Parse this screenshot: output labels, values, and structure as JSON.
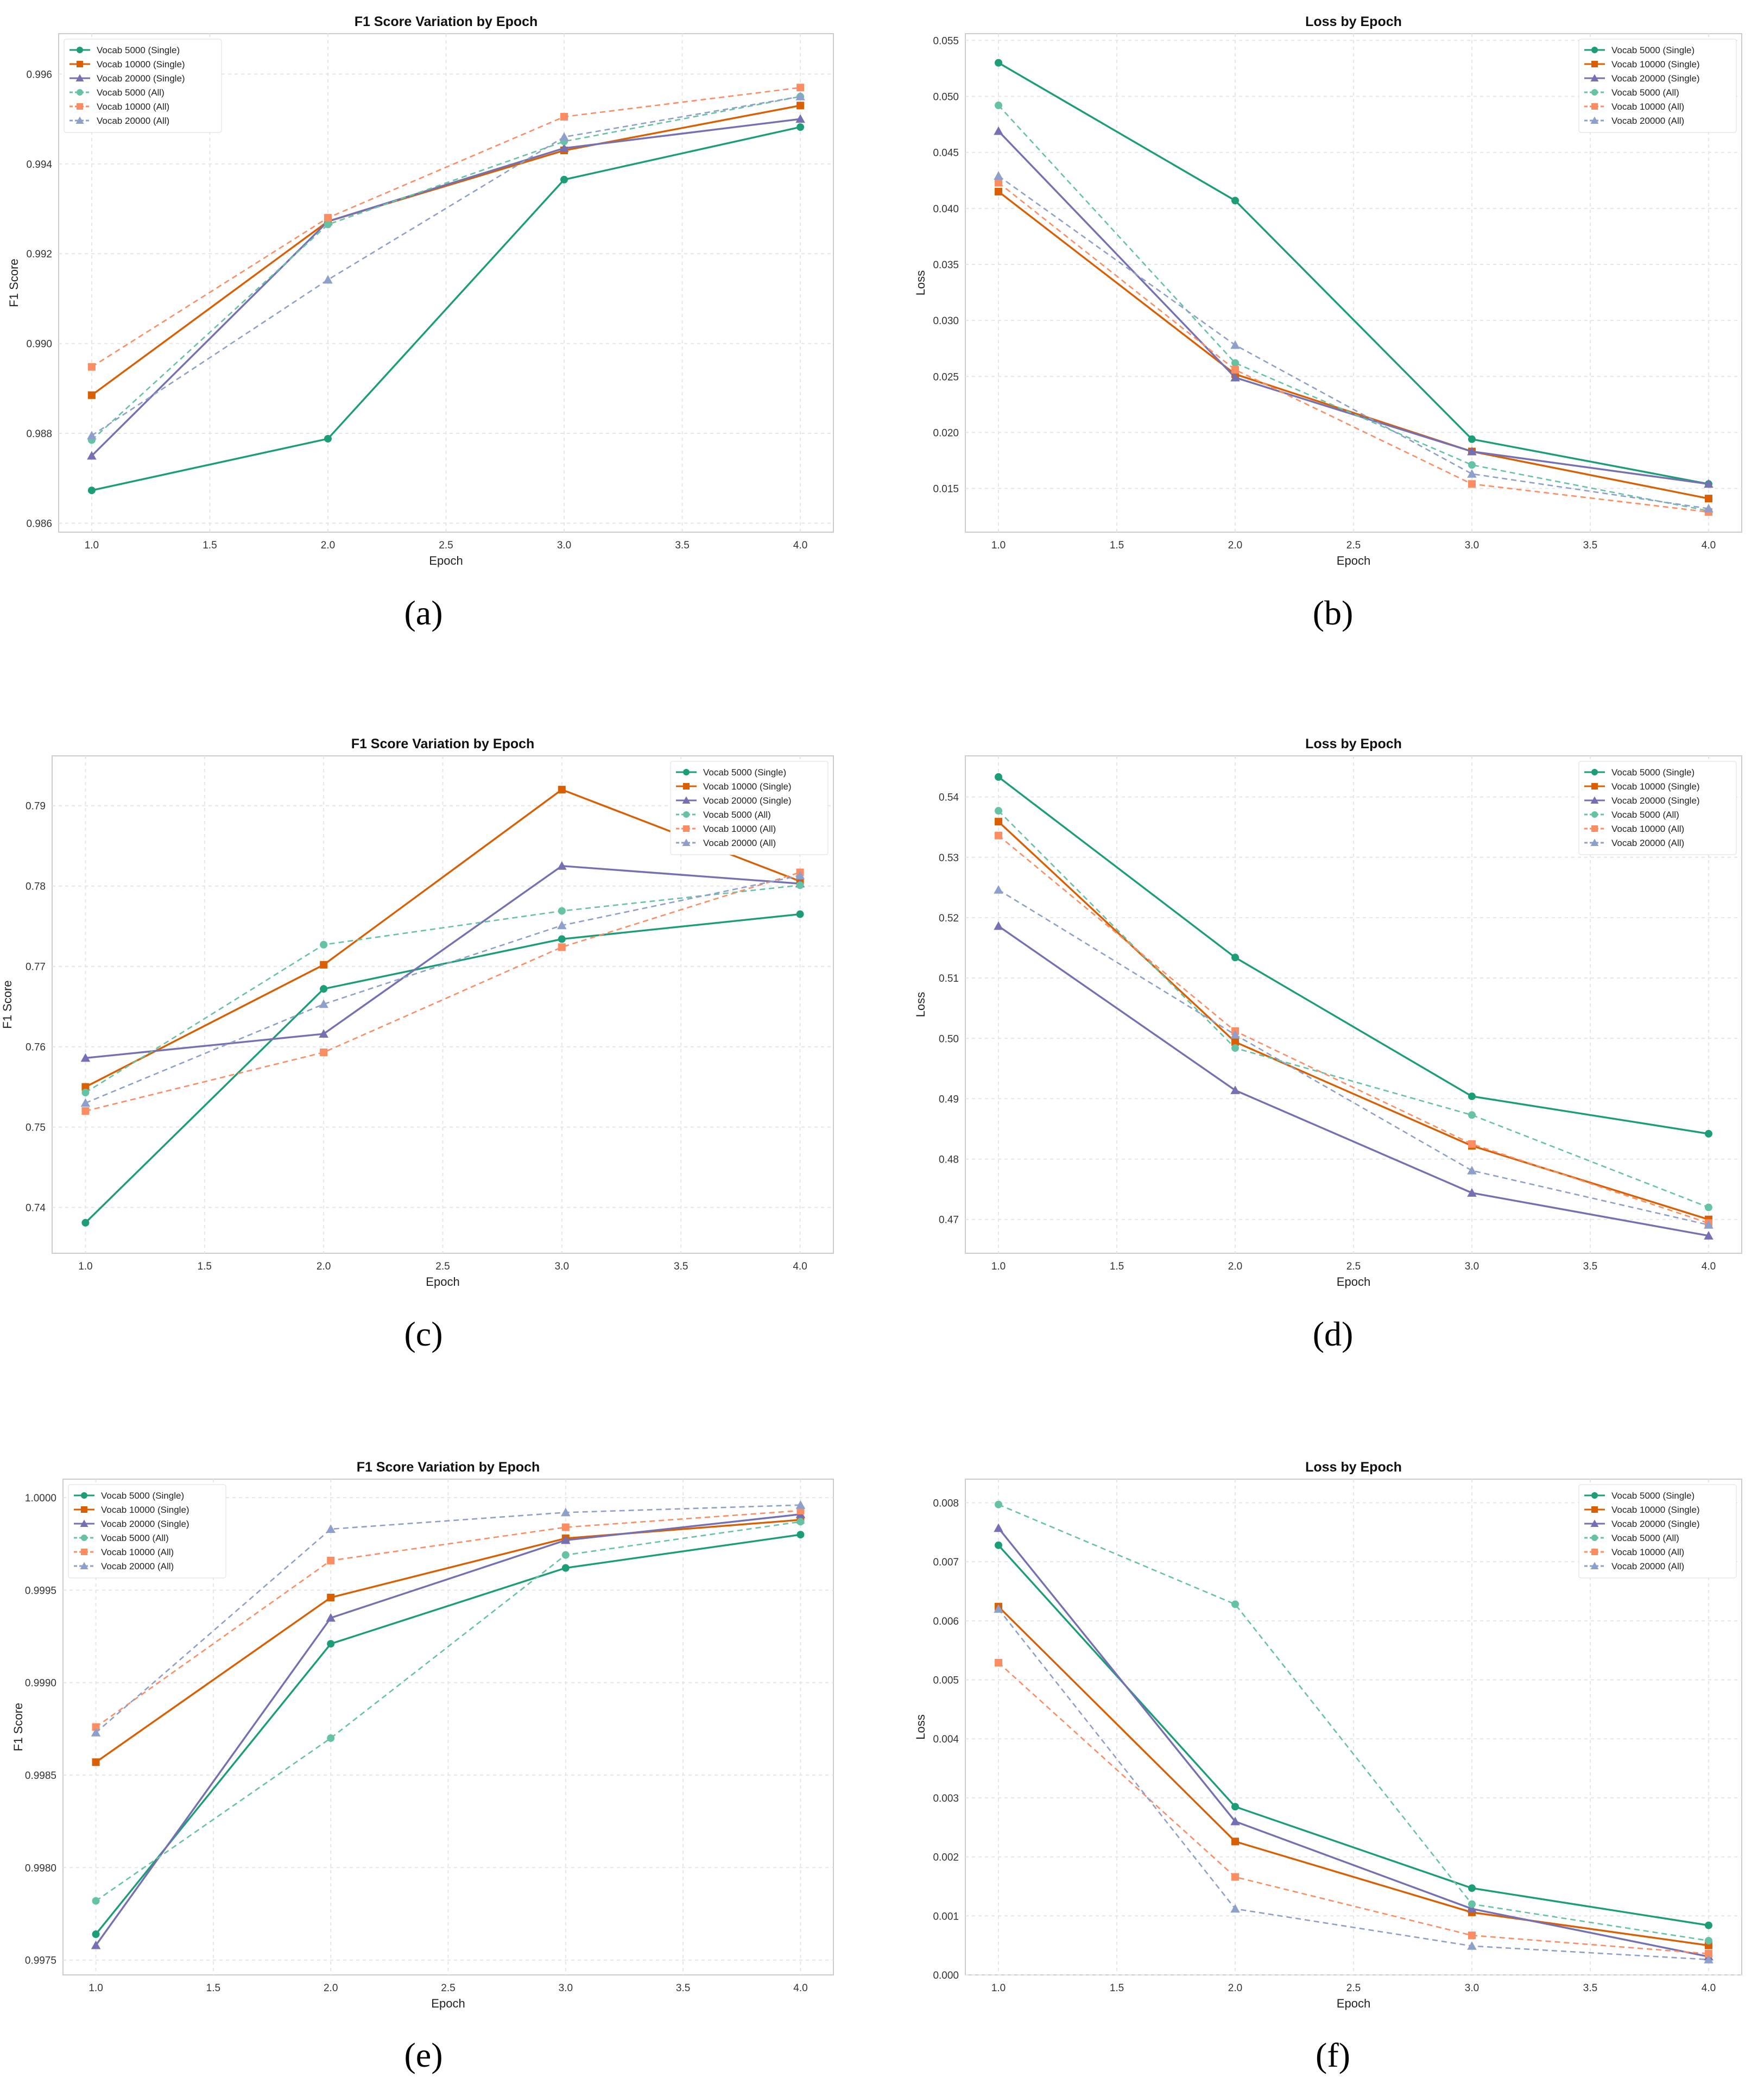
{
  "colors": {
    "green": "#1b9e77",
    "orange": "#d95f02",
    "purple": "#7570b3",
    "light_green": "#66c2a5",
    "light_orange": "#fc8d62",
    "light_purple": "#8da0cb"
  },
  "legend_labels": [
    "Vocab 5000 (Single)",
    "Vocab 10000 (Single)",
    "Vocab 20000 (Single)",
    "Vocab 5000 (All)",
    "Vocab 10000 (All)",
    "Vocab 20000 (All)"
  ],
  "chart_data": [
    {
      "panel": "(a)",
      "type": "line",
      "title": "F1 Score Variation by Epoch",
      "xlabel": "Epoch",
      "ylabel": "F1 Score",
      "x": [
        1.0,
        2.0,
        3.0,
        4.0
      ],
      "xlim": [
        0.86,
        4.14
      ],
      "xticks": [
        1.0,
        1.5,
        2.0,
        2.5,
        3.0,
        3.5,
        4.0
      ],
      "xtick_labels": [
        "1.0",
        "1.5",
        "2.0",
        "2.5",
        "3.0",
        "3.5",
        "4.0"
      ],
      "ylim": [
        0.9858,
        0.9969
      ],
      "yticks": [
        0.986,
        0.988,
        0.99,
        0.992,
        0.994,
        0.996
      ],
      "ytick_labels": [
        "0.986",
        "0.988",
        "0.990",
        "0.992",
        "0.994",
        "0.996"
      ],
      "legend_position": "top-left",
      "grid": true,
      "series": [
        {
          "name": "Vocab 5000 (Single)",
          "values": [
            0.98673,
            0.98788,
            0.99365,
            0.99482
          ]
        },
        {
          "name": "Vocab 10000 (Single)",
          "values": [
            0.98885,
            0.99272,
            0.9943,
            0.9953
          ]
        },
        {
          "name": "Vocab 20000 (Single)",
          "values": [
            0.9875,
            0.99272,
            0.99435,
            0.995
          ]
        },
        {
          "name": "Vocab 5000 (All)",
          "values": [
            0.98785,
            0.99265,
            0.9945,
            0.9955
          ]
        },
        {
          "name": "Vocab 10000 (All)",
          "values": [
            0.98948,
            0.9928,
            0.99505,
            0.9957
          ]
        },
        {
          "name": "Vocab 20000 (All)",
          "values": [
            0.98795,
            0.99142,
            0.9946,
            0.9955
          ]
        }
      ]
    },
    {
      "panel": "(b)",
      "type": "line",
      "title": "Loss by Epoch",
      "xlabel": "Epoch",
      "ylabel": "Loss",
      "x": [
        1.0,
        2.0,
        3.0,
        4.0
      ],
      "xlim": [
        0.86,
        4.14
      ],
      "xticks": [
        1.0,
        1.5,
        2.0,
        2.5,
        3.0,
        3.5,
        4.0
      ],
      "xtick_labels": [
        "1.0",
        "1.5",
        "2.0",
        "2.5",
        "3.0",
        "3.5",
        "4.0"
      ],
      "ylim": [
        0.0111,
        0.0556
      ],
      "yticks": [
        0.015,
        0.02,
        0.025,
        0.03,
        0.035,
        0.04,
        0.045,
        0.05,
        0.055
      ],
      "ytick_labels": [
        "0.015",
        "0.020",
        "0.025",
        "0.030",
        "0.035",
        "0.040",
        "0.045",
        "0.050",
        "0.055"
      ],
      "legend_position": "top-right",
      "grid": true,
      "series": [
        {
          "name": "Vocab 5000 (Single)",
          "values": [
            0.053,
            0.0407,
            0.0194,
            0.0154
          ]
        },
        {
          "name": "Vocab 10000 (Single)",
          "values": [
            0.0415,
            0.0252,
            0.0183,
            0.0141
          ]
        },
        {
          "name": "Vocab 20000 (Single)",
          "values": [
            0.0469,
            0.0249,
            0.0183,
            0.0154
          ]
        },
        {
          "name": "Vocab 5000 (All)",
          "values": [
            0.0492,
            0.0262,
            0.0171,
            0.013
          ]
        },
        {
          "name": "Vocab 10000 (All)",
          "values": [
            0.0423,
            0.0256,
            0.0154,
            0.0129
          ]
        },
        {
          "name": "Vocab 20000 (All)",
          "values": [
            0.0429,
            0.0278,
            0.0163,
            0.0132
          ]
        }
      ]
    },
    {
      "panel": "(c)",
      "type": "line",
      "title": "F1 Score Variation by Epoch",
      "xlabel": "Epoch",
      "ylabel": "F1 Score",
      "x": [
        1.0,
        2.0,
        3.0,
        4.0
      ],
      "xlim": [
        0.86,
        4.14
      ],
      "xticks": [
        1.0,
        1.5,
        2.0,
        2.5,
        3.0,
        3.5,
        4.0
      ],
      "xtick_labels": [
        "1.0",
        "1.5",
        "2.0",
        "2.5",
        "3.0",
        "3.5",
        "4.0"
      ],
      "ylim": [
        0.7343,
        0.7962
      ],
      "yticks": [
        0.74,
        0.75,
        0.76,
        0.77,
        0.78,
        0.79
      ],
      "ytick_labels": [
        "0.74",
        "0.75",
        "0.76",
        "0.77",
        "0.78",
        "0.79"
      ],
      "legend_position": "top-right",
      "grid": true,
      "series": [
        {
          "name": "Vocab 5000 (Single)",
          "values": [
            0.7381,
            0.7672,
            0.7734,
            0.7765
          ]
        },
        {
          "name": "Vocab 10000 (Single)",
          "values": [
            0.755,
            0.7702,
            0.792,
            0.7806
          ]
        },
        {
          "name": "Vocab 20000 (Single)",
          "values": [
            0.7586,
            0.7616,
            0.7825,
            0.7803
          ]
        },
        {
          "name": "Vocab 5000 (All)",
          "values": [
            0.7543,
            0.7727,
            0.7769,
            0.7801
          ]
        },
        {
          "name": "Vocab 10000 (All)",
          "values": [
            0.752,
            0.7593,
            0.7724,
            0.7817
          ]
        },
        {
          "name": "Vocab 20000 (All)",
          "values": [
            0.753,
            0.7653,
            0.7751,
            0.7813
          ]
        }
      ]
    },
    {
      "panel": "(d)",
      "type": "line",
      "title": "Loss by Epoch",
      "xlabel": "Epoch",
      "ylabel": "Loss",
      "x": [
        1.0,
        2.0,
        3.0,
        4.0
      ],
      "xlim": [
        0.86,
        4.14
      ],
      "xticks": [
        1.0,
        1.5,
        2.0,
        2.5,
        3.0,
        3.5,
        4.0
      ],
      "xtick_labels": [
        "1.0",
        "1.5",
        "2.0",
        "2.5",
        "3.0",
        "3.5",
        "4.0"
      ],
      "ylim": [
        0.4644,
        0.5468
      ],
      "yticks": [
        0.47,
        0.48,
        0.49,
        0.5,
        0.51,
        0.52,
        0.53,
        0.54
      ],
      "ytick_labels": [
        "0.47",
        "0.48",
        "0.49",
        "0.50",
        "0.51",
        "0.52",
        "0.53",
        "0.54"
      ],
      "legend_position": "top-right",
      "grid": true,
      "series": [
        {
          "name": "Vocab 5000 (Single)",
          "values": [
            0.5433,
            0.5134,
            0.4904,
            0.4842
          ]
        },
        {
          "name": "Vocab 10000 (Single)",
          "values": [
            0.5359,
            0.4994,
            0.4822,
            0.47
          ]
        },
        {
          "name": "Vocab 20000 (Single)",
          "values": [
            0.5186,
            0.4914,
            0.4744,
            0.4673
          ]
        },
        {
          "name": "Vocab 5000 (All)",
          "values": [
            0.5377,
            0.4984,
            0.4873,
            0.472
          ]
        },
        {
          "name": "Vocab 10000 (All)",
          "values": [
            0.5336,
            0.5012,
            0.4825,
            0.4694
          ]
        },
        {
          "name": "Vocab 20000 (All)",
          "values": [
            0.5246,
            0.5006,
            0.4781,
            0.4691
          ]
        }
      ]
    },
    {
      "panel": "(e)",
      "type": "line",
      "title": "F1 Score Variation by Epoch",
      "xlabel": "Epoch",
      "ylabel": "F1 Score",
      "x": [
        1.0,
        2.0,
        3.0,
        4.0
      ],
      "xlim": [
        0.86,
        4.14
      ],
      "xticks": [
        1.0,
        1.5,
        2.0,
        2.5,
        3.0,
        3.5,
        4.0
      ],
      "xtick_labels": [
        "1.0",
        "1.5",
        "2.0",
        "2.5",
        "3.0",
        "3.5",
        "4.0"
      ],
      "ylim": [
        0.99742,
        1.0001
      ],
      "yticks": [
        0.9975,
        0.998,
        0.9985,
        0.999,
        0.9995,
        1.0
      ],
      "ytick_labels": [
        "0.9975",
        "0.9980",
        "0.9985",
        "0.9990",
        "0.9995",
        "1.0000"
      ],
      "legend_position": "top-left",
      "grid": true,
      "series": [
        {
          "name": "Vocab 5000 (Single)",
          "values": [
            0.99764,
            0.99921,
            0.99962,
            0.9998
          ]
        },
        {
          "name": "Vocab 10000 (Single)",
          "values": [
            0.99857,
            0.99946,
            0.99978,
            0.99988
          ]
        },
        {
          "name": "Vocab 20000 (Single)",
          "values": [
            0.99758,
            0.99935,
            0.99977,
            0.99991
          ]
        },
        {
          "name": "Vocab 5000 (All)",
          "values": [
            0.99782,
            0.9987,
            0.99969,
            0.99987
          ]
        },
        {
          "name": "Vocab 10000 (All)",
          "values": [
            0.99876,
            0.99966,
            0.99984,
            0.99993
          ]
        },
        {
          "name": "Vocab 20000 (All)",
          "values": [
            0.99873,
            0.99983,
            0.99992,
            0.99996
          ]
        }
      ]
    },
    {
      "panel": "(f)",
      "type": "line",
      "title": "Loss by Epoch",
      "xlabel": "Epoch",
      "ylabel": "Loss",
      "x": [
        1.0,
        2.0,
        3.0,
        4.0
      ],
      "xlim": [
        0.86,
        4.14
      ],
      "xticks": [
        1.0,
        1.5,
        2.0,
        2.5,
        3.0,
        3.5,
        4.0
      ],
      "xtick_labels": [
        "1.0",
        "1.5",
        "2.0",
        "2.5",
        "3.0",
        "3.5",
        "4.0"
      ],
      "ylim": [
        0.0,
        0.0084
      ],
      "yticks": [
        0.0,
        0.001,
        0.002,
        0.003,
        0.004,
        0.005,
        0.006,
        0.007,
        0.008
      ],
      "ytick_labels": [
        "0.000",
        "0.001",
        "0.002",
        "0.003",
        "0.004",
        "0.005",
        "0.006",
        "0.007",
        "0.008"
      ],
      "legend_position": "top-right",
      "grid": true,
      "series": [
        {
          "name": "Vocab 5000 (Single)",
          "values": [
            0.00728,
            0.00285,
            0.00147,
            0.00084
          ]
        },
        {
          "name": "Vocab 10000 (Single)",
          "values": [
            0.00624,
            0.00226,
            0.00106,
            0.0005
          ]
        },
        {
          "name": "Vocab 20000 (Single)",
          "values": [
            0.00757,
            0.0026,
            0.00112,
            0.00031
          ]
        },
        {
          "name": "Vocab 5000 (All)",
          "values": [
            0.00797,
            0.00628,
            0.0012,
            0.00058
          ]
        },
        {
          "name": "Vocab 10000 (All)",
          "values": [
            0.00529,
            0.00166,
            0.00067,
            0.00036
          ]
        },
        {
          "name": "Vocab 20000 (All)",
          "values": [
            0.0062,
            0.00112,
            0.00049,
            0.00026
          ]
        }
      ]
    }
  ]
}
